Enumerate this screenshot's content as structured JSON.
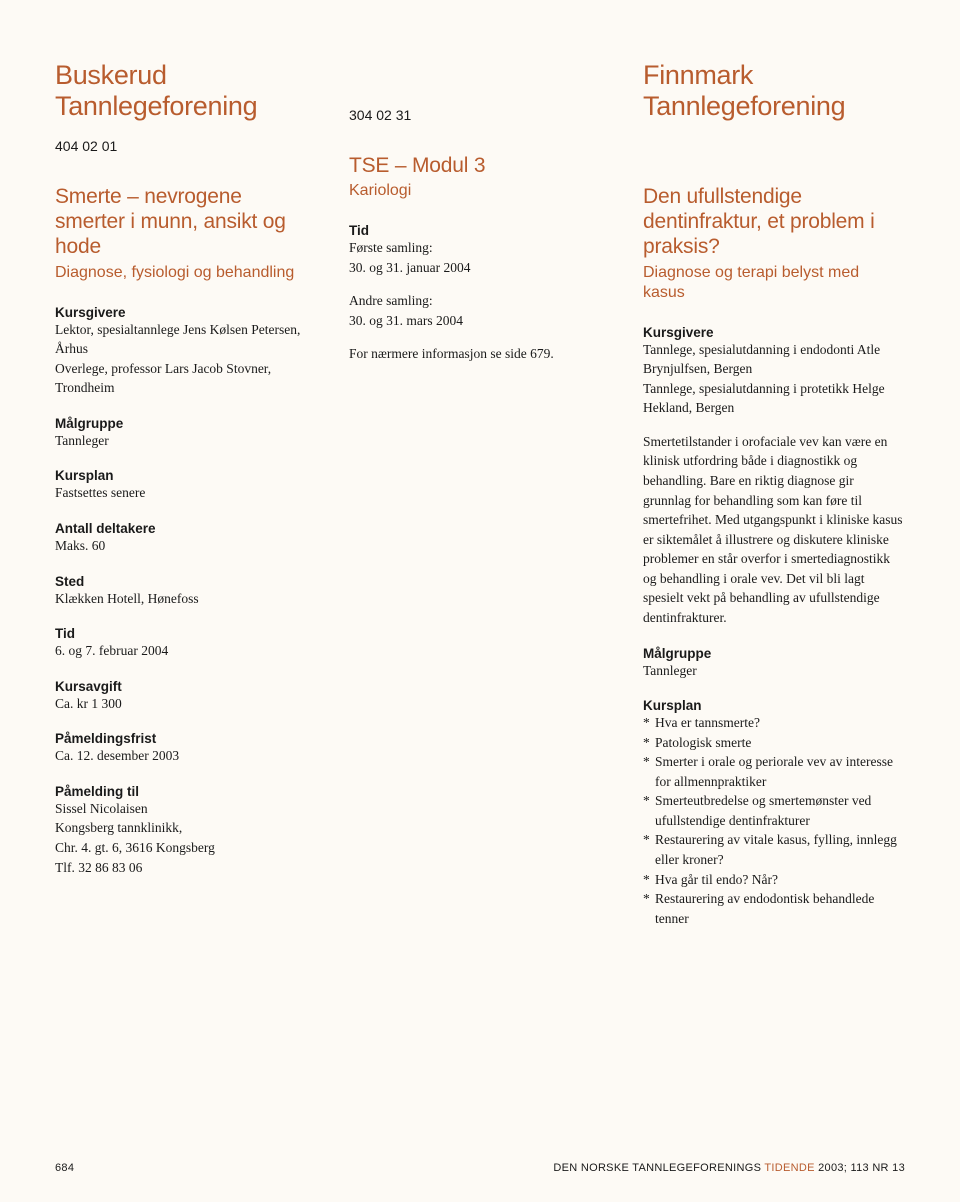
{
  "col1": {
    "region": "Buskerud Tannlegeforening",
    "code": "404 02 01",
    "course_title": "Smerte – nevrogene smerter i munn, ansikt og hode",
    "course_sub": "Diagnose, fysiologi og behandling",
    "kursgivere_label": "Kursgivere",
    "kursgivere1": "Lektor, spesialtannlege Jens Kølsen Petersen, Århus",
    "kursgivere2": "Overlege, professor Lars Jacob Stovner, Trondheim",
    "maalgruppe_label": "Målgruppe",
    "maalgruppe": "Tannleger",
    "kursplan_label": "Kursplan",
    "kursplan": "Fastsettes senere",
    "antall_label": "Antall deltakere",
    "antall": "Maks. 60",
    "sted_label": "Sted",
    "sted": "Klækken Hotell, Hønefoss",
    "tid_label": "Tid",
    "tid": "6. og 7. februar 2004",
    "kursavgift_label": "Kursavgift",
    "kursavgift": "Ca. kr 1 300",
    "frist_label": "Påmeldingsfrist",
    "frist": "Ca. 12. desember 2003",
    "paamelding_label": "Påmelding til",
    "paamelding1": "Sissel Nicolaisen",
    "paamelding2": "Kongsberg tannklinikk,",
    "paamelding3": "Chr. 4. gt. 6, 3616 Kongsberg",
    "paamelding4": "Tlf. 32 86 83 06"
  },
  "col2": {
    "code": "304 02 31",
    "course_title": "TSE – Modul 3",
    "course_sub": "Kariologi",
    "tid_label": "Tid",
    "tid1a": "Første samling:",
    "tid1b": "30. og 31. januar 2004",
    "tid2a": "Andre samling:",
    "tid2b": "30. og 31. mars 2004",
    "info": "For nærmere informasjon se side 679."
  },
  "col3": {
    "region": "Finnmark Tannlegeforening",
    "course_title": "Den ufullstendige dentinfraktur, et problem i praksis?",
    "course_sub": "Diagnose og terapi belyst med kasus",
    "kursgivere_label": "Kursgivere",
    "kursgivere1": "Tannlege, spesialutdanning i endodonti Atle Brynjulfsen, Bergen",
    "kursgivere2": "Tannlege, spesialutdanning i protetikk Helge Hekland, Bergen",
    "body": "Smertetilstander i orofaciale vev kan være en klinisk utfordring både i diagnostikk og behandling. Bare en riktig diagnose gir grunnlag for behandling som kan føre til smertefrihet. Med utgangspunkt i kliniske kasus er siktemålet å illustrere og diskutere kliniske problemer en står overfor i smertediagnostikk og behandling i orale vev. Det vil bli lagt spesielt vekt på behandling av ufullstendige dentinfrakturer.",
    "maalgruppe_label": "Målgruppe",
    "maalgruppe": "Tannleger",
    "kursplan_label": "Kursplan",
    "plan": [
      "Hva er tannsmerte?",
      "Patologisk smerte",
      "Smerter i orale og periorale vev av interesse for allmennpraktiker",
      "Smerteutbredelse og smertemønster ved ufullstendige dentinfrakturer",
      "Restaurering av vitale kasus, fylling, innlegg eller kroner?",
      "Hva går til endo? Når?",
      "Restaurering av endodontisk behandlede tenner"
    ]
  },
  "footer": {
    "page": "684",
    "pub_pre": "DEN NORSKE TANNLEGEFORENINGS ",
    "pub_tid": "TIDENDE",
    "pub_post": " 2003; 113 NR 13"
  },
  "colors": {
    "accent": "#b85c2e",
    "text": "#1a1a1a",
    "background": "#fdfaf5"
  }
}
